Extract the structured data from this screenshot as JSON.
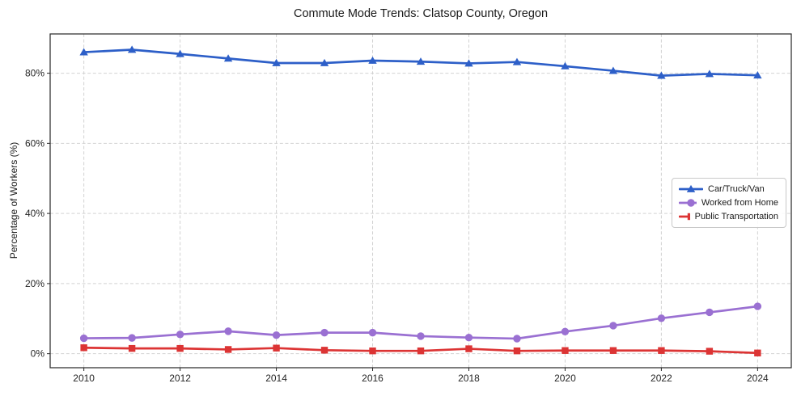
{
  "chart_data": {
    "type": "line",
    "title": "Commute Mode Trends: Clatsop County, Oregon",
    "xlabel": "",
    "ylabel": "Percentage of Workers (%)",
    "x": [
      2010,
      2011,
      2012,
      2013,
      2014,
      2015,
      2016,
      2017,
      2018,
      2019,
      2020,
      2021,
      2022,
      2023,
      2024
    ],
    "series": [
      {
        "name": "Car/Truck/Van",
        "marker": "triangle",
        "color": "#2d5fc8",
        "values": [
          86.0,
          86.7,
          85.5,
          84.2,
          82.9,
          82.9,
          83.6,
          83.3,
          82.8,
          83.2,
          82.0,
          80.7,
          79.3,
          79.8,
          79.4
        ]
      },
      {
        "name": "Worked from Home",
        "marker": "circle",
        "color": "#9a70d2",
        "values": [
          4.4,
          4.5,
          5.5,
          6.4,
          5.3,
          6.0,
          6.0,
          5.0,
          4.6,
          4.3,
          6.3,
          8.0,
          10.1,
          11.8,
          13.5
        ]
      },
      {
        "name": "Public Transportation",
        "marker": "square",
        "color": "#dc3434",
        "values": [
          1.7,
          1.5,
          1.5,
          1.2,
          1.6,
          1.0,
          0.8,
          0.8,
          1.4,
          0.8,
          0.9,
          0.9,
          0.9,
          0.7,
          0.2
        ]
      }
    ],
    "xticks": [
      2010,
      2012,
      2014,
      2016,
      2018,
      2020,
      2022,
      2024
    ],
    "yticks": [
      0,
      20,
      40,
      60,
      80
    ],
    "ytick_suffix": "%",
    "xlim": [
      2009.3,
      2024.7
    ],
    "ylim": [
      -4.0,
      91.2
    ],
    "grid": true,
    "legend_position": "center-right"
  }
}
